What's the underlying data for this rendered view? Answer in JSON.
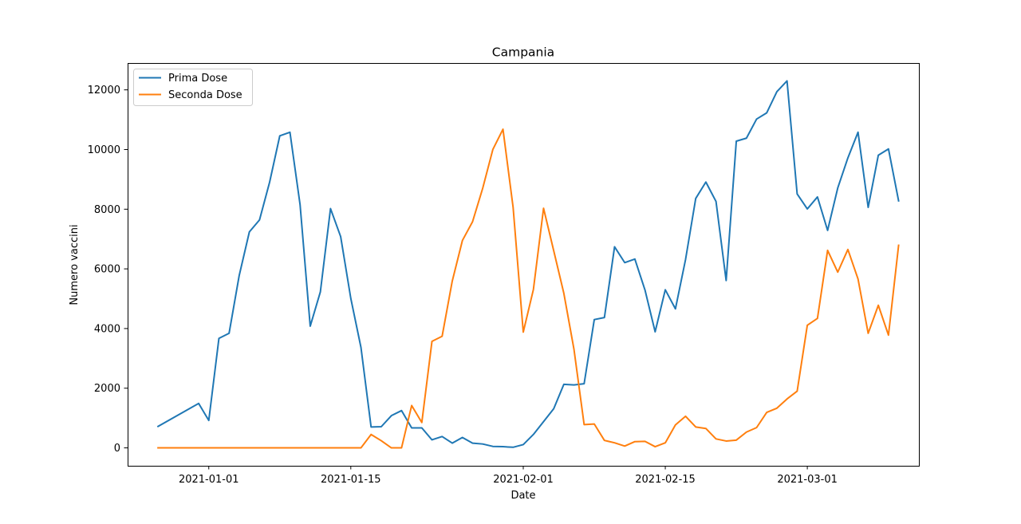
{
  "chart_data": {
    "type": "line",
    "title": "Campania",
    "xlabel": "Date",
    "ylabel": "Numero vaccini",
    "xlim": [
      "2020-12-24",
      "2021-03-12"
    ],
    "ylim": [
      -600,
      12900
    ],
    "x_ticks": [
      "2021-01-01",
      "2021-01-15",
      "2021-02-01",
      "2021-02-15",
      "2021-03-01"
    ],
    "y_ticks": [
      0,
      2000,
      4000,
      6000,
      8000,
      10000,
      12000
    ],
    "legend_position": "upper-left",
    "series": [
      {
        "name": "Prima Dose",
        "color": "#1f77b4",
        "points": [
          [
            "2020-12-27",
            720
          ],
          [
            "2020-12-31",
            1490
          ],
          [
            "2021-01-01",
            920
          ],
          [
            "2021-01-02",
            3670
          ],
          [
            "2021-01-03",
            3840
          ],
          [
            "2021-01-04",
            5780
          ],
          [
            "2021-01-05",
            7240
          ],
          [
            "2021-01-06",
            7640
          ],
          [
            "2021-01-07",
            8910
          ],
          [
            "2021-01-08",
            10460
          ],
          [
            "2021-01-09",
            10580
          ],
          [
            "2021-01-10",
            8150
          ],
          [
            "2021-01-11",
            4080
          ],
          [
            "2021-01-12",
            5230
          ],
          [
            "2021-01-13",
            8020
          ],
          [
            "2021-01-14",
            7080
          ],
          [
            "2021-01-15",
            5010
          ],
          [
            "2021-01-16",
            3370
          ],
          [
            "2021-01-17",
            700
          ],
          [
            "2021-01-18",
            710
          ],
          [
            "2021-01-19",
            1080
          ],
          [
            "2021-01-20",
            1250
          ],
          [
            "2021-01-21",
            670
          ],
          [
            "2021-01-22",
            670
          ],
          [
            "2021-01-23",
            270
          ],
          [
            "2021-01-24",
            380
          ],
          [
            "2021-01-25",
            160
          ],
          [
            "2021-01-26",
            350
          ],
          [
            "2021-01-27",
            160
          ],
          [
            "2021-01-28",
            130
          ],
          [
            "2021-01-29",
            50
          ],
          [
            "2021-01-30",
            40
          ],
          [
            "2021-01-31",
            20
          ],
          [
            "2021-02-01",
            110
          ],
          [
            "2021-02-02",
            450
          ],
          [
            "2021-02-03",
            880
          ],
          [
            "2021-02-04",
            1310
          ],
          [
            "2021-02-05",
            2130
          ],
          [
            "2021-02-06",
            2110
          ],
          [
            "2021-02-07",
            2150
          ],
          [
            "2021-02-08",
            4300
          ],
          [
            "2021-02-09",
            4370
          ],
          [
            "2021-02-10",
            6740
          ],
          [
            "2021-02-11",
            6210
          ],
          [
            "2021-02-12",
            6330
          ],
          [
            "2021-02-13",
            5290
          ],
          [
            "2021-02-14",
            3890
          ],
          [
            "2021-02-15",
            5300
          ],
          [
            "2021-02-16",
            4660
          ],
          [
            "2021-02-17",
            6320
          ],
          [
            "2021-02-18",
            8360
          ],
          [
            "2021-02-19",
            8910
          ],
          [
            "2021-02-20",
            8260
          ],
          [
            "2021-02-21",
            5610
          ],
          [
            "2021-02-22",
            10280
          ],
          [
            "2021-02-23",
            10380
          ],
          [
            "2021-02-24",
            11020
          ],
          [
            "2021-02-25",
            11230
          ],
          [
            "2021-02-26",
            11940
          ],
          [
            "2021-02-27",
            12300
          ],
          [
            "2021-02-28",
            8510
          ],
          [
            "2021-03-01",
            8010
          ],
          [
            "2021-03-02",
            8410
          ],
          [
            "2021-03-03",
            7290
          ],
          [
            "2021-03-04",
            8710
          ],
          [
            "2021-03-05",
            9720
          ],
          [
            "2021-03-06",
            10580
          ],
          [
            "2021-03-07",
            8060
          ],
          [
            "2021-03-08",
            9810
          ],
          [
            "2021-03-09",
            10020
          ],
          [
            "2021-03-10",
            8280
          ]
        ]
      },
      {
        "name": "Seconda Dose",
        "color": "#ff7f0e",
        "points": [
          [
            "2020-12-27",
            0
          ],
          [
            "2021-01-16",
            0
          ],
          [
            "2021-01-17",
            450
          ],
          [
            "2021-01-18",
            240
          ],
          [
            "2021-01-19",
            0
          ],
          [
            "2021-01-20",
            0
          ],
          [
            "2021-01-21",
            1420
          ],
          [
            "2021-01-22",
            850
          ],
          [
            "2021-01-23",
            3570
          ],
          [
            "2021-01-24",
            3740
          ],
          [
            "2021-01-25",
            5590
          ],
          [
            "2021-01-26",
            6950
          ],
          [
            "2021-01-27",
            7580
          ],
          [
            "2021-01-28",
            8700
          ],
          [
            "2021-01-29",
            10000
          ],
          [
            "2021-01-30",
            10680
          ],
          [
            "2021-01-31",
            8060
          ],
          [
            "2021-02-01",
            3880
          ],
          [
            "2021-02-02",
            5310
          ],
          [
            "2021-02-03",
            8030
          ],
          [
            "2021-02-04",
            6610
          ],
          [
            "2021-02-05",
            5180
          ],
          [
            "2021-02-06",
            3300
          ],
          [
            "2021-02-07",
            780
          ],
          [
            "2021-02-08",
            800
          ],
          [
            "2021-02-09",
            250
          ],
          [
            "2021-02-10",
            170
          ],
          [
            "2021-02-11",
            60
          ],
          [
            "2021-02-12",
            210
          ],
          [
            "2021-02-13",
            220
          ],
          [
            "2021-02-14",
            40
          ],
          [
            "2021-02-15",
            170
          ],
          [
            "2021-02-16",
            770
          ],
          [
            "2021-02-17",
            1060
          ],
          [
            "2021-02-18",
            700
          ],
          [
            "2021-02-19",
            650
          ],
          [
            "2021-02-20",
            300
          ],
          [
            "2021-02-21",
            230
          ],
          [
            "2021-02-22",
            260
          ],
          [
            "2021-02-23",
            530
          ],
          [
            "2021-02-24",
            680
          ],
          [
            "2021-02-25",
            1190
          ],
          [
            "2021-02-26",
            1330
          ],
          [
            "2021-02-27",
            1640
          ],
          [
            "2021-02-28",
            1900
          ],
          [
            "2021-03-01",
            4110
          ],
          [
            "2021-03-02",
            4340
          ],
          [
            "2021-03-03",
            6620
          ],
          [
            "2021-03-04",
            5890
          ],
          [
            "2021-03-05",
            6650
          ],
          [
            "2021-03-06",
            5660
          ],
          [
            "2021-03-07",
            3840
          ],
          [
            "2021-03-08",
            4780
          ],
          [
            "2021-03-09",
            3780
          ],
          [
            "2021-03-10",
            6790
          ]
        ]
      }
    ]
  }
}
